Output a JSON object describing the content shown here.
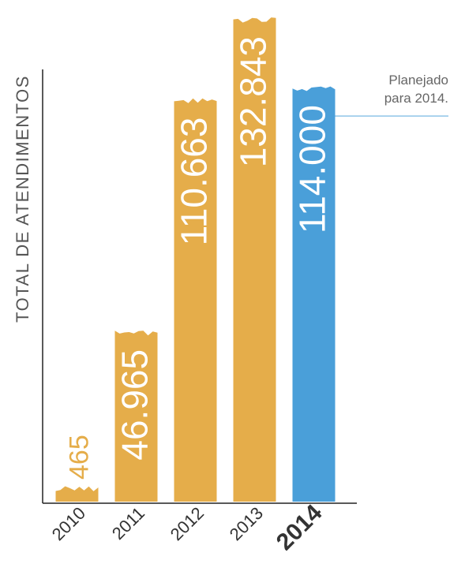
{
  "chart_data": {
    "type": "bar",
    "ylabel": "TOTAL DE ATENDIMENTOS",
    "categories": [
      "2010",
      "2011",
      "2012",
      "2013",
      "2014"
    ],
    "values": [
      465,
      46965,
      110663,
      132843,
      114000
    ],
    "value_labels": [
      "465",
      "46.965",
      "110.663",
      "132.843",
      "114.000"
    ],
    "highlight_category": "2014",
    "annotation": {
      "target": "2014",
      "lines": [
        "Planejado",
        "para 2014."
      ]
    },
    "colors": {
      "bar": "#E5AD4A",
      "bar_highlight": "#4A9FD9",
      "small_value_label": "#E5AD4A",
      "annotation_line": "#8FC4E8"
    },
    "ylim": [
      0,
      132843
    ]
  }
}
